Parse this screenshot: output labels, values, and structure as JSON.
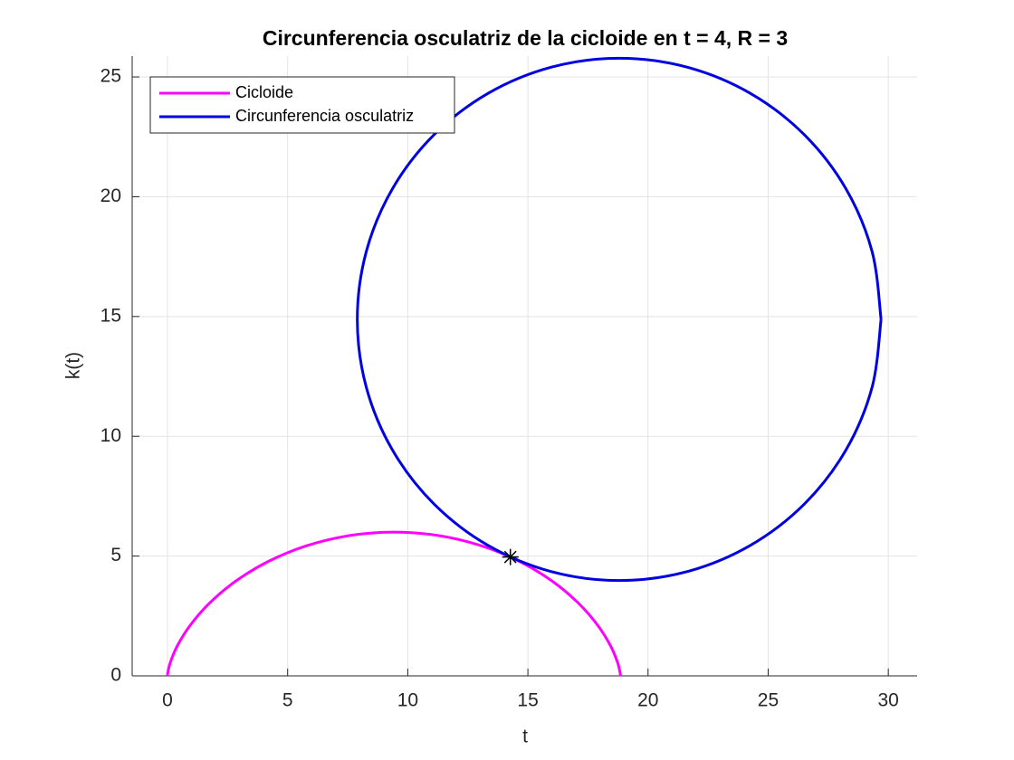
{
  "chart_data": {
    "type": "line",
    "title": "Circunferencia osculatriz de la cicloide en t = 4, R = 3",
    "xlabel": "t",
    "ylabel": "k(t)",
    "xlim": [
      -1.47,
      31.2
    ],
    "ylim": [
      0,
      25.87
    ],
    "xticks": [
      0,
      5,
      10,
      15,
      20,
      25,
      30
    ],
    "yticks": [
      0,
      5,
      10,
      15,
      20,
      25
    ],
    "grid": true,
    "legend_position": "upper left",
    "series": [
      {
        "name": "Cicloide",
        "color": "#ff00ff",
        "x": [
          0,
          0.015,
          0.122,
          0.4,
          0.917,
          1.712,
          2.802,
          4.17,
          5.776,
          7.555,
          9.425,
          11.294,
          13.073,
          14.679,
          16.048,
          17.137,
          17.933,
          18.449,
          18.728,
          18.834,
          18.85
        ],
        "values": [
          0,
          0.147,
          0.573,
          1.237,
          2.073,
          3,
          3.927,
          4.763,
          5.427,
          5.853,
          6,
          5.853,
          5.427,
          4.763,
          3.927,
          3,
          2.073,
          1.237,
          0.573,
          0.147,
          0
        ]
      },
      {
        "name": "Circunferencia osculatriz",
        "color": "#0000e0",
        "x": [
          29.7,
          29.329,
          28.239,
          26.507,
          24.25,
          21.621,
          18.8,
          15.979,
          13.35,
          11.093,
          9.361,
          8.271,
          7.9,
          8.271,
          9.361,
          11.093,
          13.35,
          15.979,
          18.8,
          21.621,
          24.25,
          26.507,
          28.239,
          29.329,
          29.7
        ],
        "values": [
          14.88,
          17.701,
          20.33,
          22.587,
          24.319,
          25.409,
          25.78,
          25.409,
          24.319,
          22.587,
          20.33,
          17.701,
          14.88,
          12.059,
          9.43,
          7.173,
          5.441,
          4.351,
          3.98,
          4.351,
          5.441,
          7.173,
          9.43,
          12.059,
          14.88
        ]
      }
    ],
    "marker_point": {
      "x": 14.27,
      "y": 4.96,
      "color": "#000000"
    }
  }
}
